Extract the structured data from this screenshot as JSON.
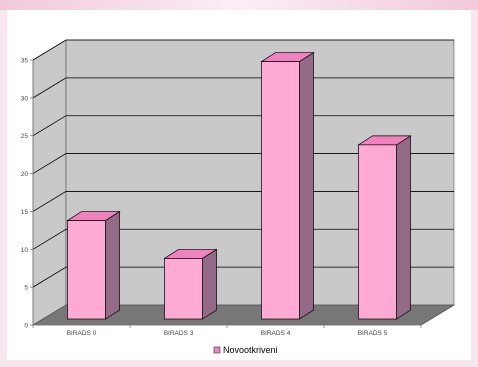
{
  "chart_data": {
    "type": "bar",
    "categories": [
      "BIRADS 0",
      "BIRADS 3",
      "BIRADS 4",
      "BIRADS 5"
    ],
    "series": [
      {
        "name": "Novootkriveni",
        "values": [
          13,
          8,
          34,
          23
        ]
      }
    ],
    "ylim": [
      0,
      35
    ],
    "yticks": [
      0,
      5,
      10,
      15,
      20,
      25,
      30,
      35
    ],
    "grid": true,
    "legend_position": "bottom",
    "colors": {
      "bar_front": "#ffaad4",
      "bar_side": "#946b87",
      "bar_top": "#f082c0",
      "wall": "#c9c9c9",
      "floor": "#777777"
    }
  }
}
